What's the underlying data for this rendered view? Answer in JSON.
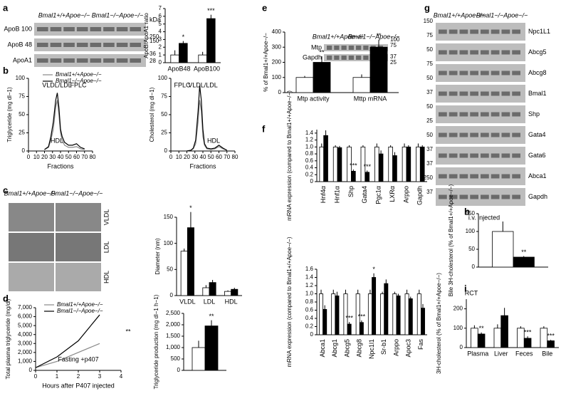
{
  "panel_letters": [
    "a",
    "b",
    "c",
    "d",
    "e",
    "f",
    "g",
    "h",
    "i"
  ],
  "blot_a": {
    "groups": [
      "Bmal1+/+Apoe−/−",
      "Bmal1−/−Apoe−/−"
    ],
    "rows": [
      "ApoB 100",
      "ApoB 48",
      "ApoA1"
    ],
    "unit": "kDa",
    "markers": [
      "250",
      "150",
      "36",
      "28"
    ]
  },
  "blot_e": {
    "groups": [
      "Bmal1+/+Apoe−/−",
      "Bmal1−/−Apoe−/−"
    ],
    "rows": [
      "Mtp",
      "Gapdh"
    ],
    "markers": [
      "100",
      "75",
      "37",
      "25"
    ]
  },
  "blot_g": {
    "groups": [
      "Bmal1+/+Apoe−/−",
      "Bmal1−/−Apoe−/−"
    ],
    "rows": [
      "Npc1L1",
      "Abcg5",
      "Abcg8",
      "Bmal1",
      "Shp",
      "Gata4",
      "Gata6",
      "Abca1",
      "Gapdh"
    ],
    "markers": [
      "150",
      "75",
      "50",
      "75",
      "50",
      "37",
      "50",
      "25",
      "50",
      "37",
      "37",
      "250",
      "37"
    ]
  },
  "micrographs_c": {
    "groups": [
      "Bmal1+/+Apoe−/−",
      "Bmal1−/−Apoe−/−"
    ],
    "rows": [
      "VLDL",
      "LDL",
      "HDL"
    ]
  },
  "chart_data": [
    {
      "type": "bar",
      "y_label": "ApoB/ApoA1 ratio",
      "categories": [
        "ApoB48",
        "ApoB100"
      ],
      "ylim": [
        0,
        7
      ],
      "yticks": [
        0,
        1,
        2,
        3,
        4,
        5,
        6,
        7
      ],
      "series": [
        {
          "color": "#ffffff",
          "values": [
            1.0,
            1.0
          ],
          "errors": [
            0.6,
            0.4
          ]
        },
        {
          "color": "#000000",
          "values": [
            2.5,
            5.7
          ],
          "errors": [
            0.3,
            0.5
          ],
          "significance": [
            "*",
            "***"
          ]
        }
      ]
    },
    {
      "type": "line",
      "y_label": "Triglyceride (mg dl−1)",
      "x_label": "Fractions",
      "annotations": [
        "VLDL/LDL",
        "FPLC",
        "HDL"
      ],
      "x": [
        20,
        25,
        28,
        31,
        34,
        36,
        38,
        40,
        42,
        45,
        50,
        55,
        60,
        65,
        70
      ],
      "xlim": [
        0,
        80
      ],
      "xticks": [
        0,
        10,
        20,
        30,
        40,
        50,
        60,
        70,
        80
      ],
      "ylim": [
        0,
        100
      ],
      "yticks": [
        0,
        25,
        50,
        75,
        100
      ],
      "series": [
        {
          "name": "Bmal1+/+Apoe−/−",
          "color": "#888888",
          "values": [
            2,
            5,
            15,
            30,
            60,
            70,
            50,
            25,
            15,
            8,
            5,
            5,
            6,
            3,
            2
          ]
        },
        {
          "name": "Bmal1−/−Apoe−/−",
          "color": "#000000",
          "values": [
            2,
            6,
            20,
            40,
            70,
            80,
            60,
            30,
            20,
            12,
            8,
            8,
            10,
            5,
            3
          ]
        }
      ]
    },
    {
      "type": "line",
      "y_label": "Cholesterol (mg dl−1)",
      "x_label": "Fractions",
      "annotations": [
        "FPLC",
        "VLDL/LDL",
        "HDL"
      ],
      "x": [
        20,
        25,
        28,
        31,
        34,
        36,
        38,
        40,
        42,
        45,
        50,
        55,
        60,
        65,
        70
      ],
      "xlim": [
        0,
        80
      ],
      "xticks": [
        0,
        10,
        20,
        30,
        40,
        50,
        60,
        70,
        80
      ],
      "ylim": [
        0,
        100
      ],
      "yticks": [
        0,
        25,
        50,
        75,
        100
      ],
      "series": [
        {
          "color": "#888888",
          "values": [
            0,
            1,
            3,
            10,
            40,
            70,
            55,
            20,
            8,
            3,
            2,
            3,
            6,
            3,
            1
          ]
        },
        {
          "color": "#000000",
          "values": [
            0,
            1,
            4,
            15,
            55,
            90,
            70,
            30,
            10,
            4,
            3,
            4,
            8,
            4,
            1
          ]
        }
      ]
    },
    {
      "type": "bar",
      "y_label": "Diameter (nm)",
      "categories": [
        "VLDL",
        "LDL",
        "HDL"
      ],
      "ylim": [
        0,
        150
      ],
      "yticks": [
        0,
        50,
        100,
        150
      ],
      "series": [
        {
          "color": "#ffffff",
          "values": [
            85,
            15,
            8
          ],
          "errors": [
            5,
            5,
            2
          ]
        },
        {
          "color": "#000000",
          "values": [
            130,
            25,
            12
          ],
          "errors": [
            30,
            5,
            3
          ],
          "significance": [
            "*",
            null,
            null
          ]
        }
      ]
    },
    {
      "type": "line",
      "y_label": "Total plasma triglyceride (mg/dl)",
      "x_label": "Hours after P407 injected",
      "annotations": [
        "Fasting +p407",
        "**"
      ],
      "x": [
        0,
        1,
        2,
        3
      ],
      "xlim": [
        0,
        4
      ],
      "xticks": [
        0,
        1,
        2,
        3,
        4
      ],
      "ylim": [
        0,
        7000
      ],
      "yticks": [
        0,
        {
          "value": 1000,
          "label": "1,000"
        },
        {
          "value": 2000,
          "label": "2,000"
        },
        {
          "value": 3000,
          "label": "3,000"
        },
        {
          "value": 4000,
          "label": "4,000"
        },
        {
          "value": 5000,
          "label": "5,000"
        },
        {
          "value": 6000,
          "label": "6,000"
        },
        {
          "value": 7000,
          "label": "7,000"
        }
      ],
      "series": [
        {
          "name": "Bmal1+/+Apoe−/−",
          "color": "#888888",
          "values": [
            300,
            1000,
            2000,
            3000
          ]
        },
        {
          "name": "Bmal1−/−Apoe−/−",
          "color": "#000000",
          "values": [
            300,
            1500,
            3300,
            6200
          ]
        }
      ]
    },
    {
      "type": "bar",
      "y_label": "Triglyceride production (mg dl−1 h−1)",
      "categories": [
        null
      ],
      "ylim": [
        0,
        2500
      ],
      "yticks": [
        0,
        500,
        {
          "value": 1000,
          "label": "1,000"
        },
        {
          "value": 1500,
          "label": "1,500"
        },
        {
          "value": 2000,
          "label": "2,000"
        },
        {
          "value": 2500,
          "label": "2,500"
        }
      ],
      "series": [
        {
          "color": "#ffffff",
          "values": [
            1000
          ],
          "errors": [
            300
          ]
        },
        {
          "color": "#000000",
          "values": [
            1950
          ],
          "errors": [
            250
          ],
          "significance": [
            "**"
          ]
        }
      ]
    },
    {
      "type": "bar",
      "y_label": "% of Bmal1+/+Apoe−/−",
      "categories": [
        "Mtp activity",
        "Mttp mRNA"
      ],
      "ylim": [
        0,
        400
      ],
      "yticks": [
        0,
        100,
        200,
        300,
        400
      ],
      "series": [
        {
          "color": "#ffffff",
          "values": [
            100,
            100
          ],
          "errors": [
            10,
            20
          ]
        },
        {
          "color": "#000000",
          "values": [
            200,
            300
          ],
          "errors": [
            40,
            50
          ],
          "significance": [
            "**",
            "**"
          ]
        }
      ]
    },
    {
      "type": "bar",
      "y_label": "mRNA expression (compared to Bmal1+/+Apoe−/−)",
      "categories": [
        "Hnf4α",
        "Hnf1α",
        "Shp",
        "Gata4",
        "Pgc1α",
        "LXRα",
        "Arppo",
        "Gapdh"
      ],
      "ylim": [
        0,
        1.5
      ],
      "yticks": [
        0,
        0.2,
        0.4,
        0.6,
        0.8,
        {
          "value": 1,
          "label": "1.0"
        },
        1.2,
        1.4
      ],
      "series": [
        {
          "color": "#ffffff",
          "values": [
            1,
            1,
            1,
            1,
            1,
            1,
            1,
            1
          ],
          "errors": [
            0.1,
            0.05,
            0.05,
            0.05,
            0.1,
            0.05,
            0.1,
            0.1
          ]
        },
        {
          "color": "#000000",
          "values": [
            1.33,
            0.98,
            0.3,
            0.27,
            0.8,
            0.75,
            1.0,
            1.0
          ],
          "errors": [
            0.15,
            0.05,
            0.05,
            0.05,
            0.1,
            0.1,
            0.05,
            0.05
          ],
          "significance": [
            null,
            null,
            "***",
            "***",
            null,
            null,
            null,
            null
          ]
        }
      ]
    },
    {
      "type": "bar",
      "y_label": "mRNA expression (compared to Bmal1+/+Apoe−/−)",
      "categories": [
        "Abca1",
        "Abcg1",
        "Abcg5",
        "Abcg8",
        "Npc1l1",
        "Sr-b1",
        "Arppo",
        "Apoc3",
        "Fas"
      ],
      "ylim": [
        0,
        1.6
      ],
      "yticks": [
        0,
        0.2,
        0.4,
        0.6,
        0.8,
        {
          "value": 1,
          "label": "1.0"
        },
        1.2,
        1.4,
        1.6
      ],
      "series": [
        {
          "color": "#ffffff",
          "values": [
            1,
            1,
            1,
            1,
            1,
            1,
            1,
            1,
            1
          ],
          "errors": [
            0.1,
            0.1,
            0.1,
            0.1,
            0.1,
            0.05,
            0.05,
            0.1,
            0.1
          ]
        },
        {
          "color": "#000000",
          "values": [
            0.62,
            0.95,
            0.26,
            0.3,
            1.4,
            1.25,
            0.95,
            0.88,
            0.65
          ],
          "errors": [
            0.1,
            0.1,
            0.05,
            0.05,
            0.1,
            0.1,
            0.05,
            0.05,
            0.1
          ],
          "significance": [
            null,
            null,
            "***",
            "***",
            "*",
            null,
            null,
            null,
            null
          ]
        }
      ]
    },
    {
      "type": "bar",
      "y_label": "Bile 3H-cholesterol (% of Bmal1+/+Apoe−/−)",
      "annotations": [
        "i.v. injected"
      ],
      "categories": [
        null
      ],
      "ylim": [
        0,
        150
      ],
      "yticks": [
        0,
        50,
        100,
        150
      ],
      "series": [
        {
          "color": "#ffffff",
          "values": [
            100
          ],
          "errors": [
            28
          ]
        },
        {
          "color": "#000000",
          "values": [
            28
          ],
          "errors": [
            3
          ],
          "significance": [
            "**"
          ]
        }
      ]
    },
    {
      "type": "bar",
      "y_label": "3H-cholesterol (% of Bmal1+/+Apoe−/−)",
      "annotations": [
        "RCT"
      ],
      "categories": [
        "Plasma",
        "Liver",
        "Feces",
        "Bile"
      ],
      "ylim": [
        0,
        250
      ],
      "yticks": [
        0,
        100,
        200
      ],
      "series": [
        {
          "color": "#ffffff",
          "values": [
            100,
            100,
            100,
            100
          ],
          "errors": [
            15,
            20,
            10,
            10
          ]
        },
        {
          "color": "#000000",
          "values": [
            70,
            165,
            48,
            35
          ],
          "errors": [
            8,
            40,
            10,
            5
          ],
          "significance": [
            "**",
            null,
            "***",
            "***"
          ]
        }
      ]
    }
  ]
}
